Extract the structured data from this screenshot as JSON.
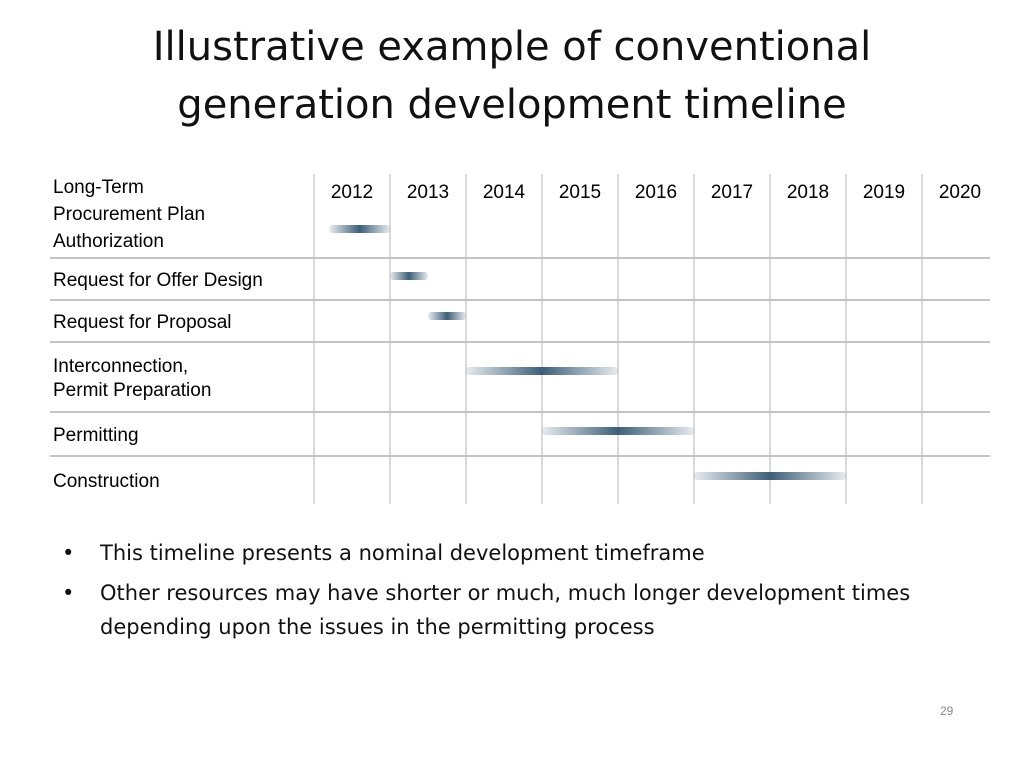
{
  "slide": {
    "title_line1": "Illustrative example of conventional",
    "title_line2": "generation development timeline",
    "page_number": "29"
  },
  "chart_data": {
    "type": "gantt",
    "years": [
      "2012",
      "2013",
      "2014",
      "2015",
      "2016",
      "2017",
      "2018",
      "2019",
      "2020"
    ],
    "tasks": [
      {
        "label_lines": [
          "Long-Term",
          "Procurement Plan",
          "Authorization"
        ],
        "start": 2012.2,
        "end": 2013.0
      },
      {
        "label_lines": [
          "Request for Offer Design"
        ],
        "start": 2013.0,
        "end": 2013.5
      },
      {
        "label_lines": [
          "Request for Proposal"
        ],
        "start": 2013.5,
        "end": 2014.0
      },
      {
        "label_lines": [
          "Interconnection,",
          "Permit Preparation"
        ],
        "start": 2014.0,
        "end": 2016.0
      },
      {
        "label_lines": [
          "Permitting"
        ],
        "start": 2015.0,
        "end": 2017.0
      },
      {
        "label_lines": [
          "Construction"
        ],
        "start": 2017.0,
        "end": 2019.0
      }
    ],
    "bar_color": "#3e5f78",
    "grid": true
  },
  "bullets": [
    "This timeline presents a nominal development timeframe",
    "Other resources may have shorter or much, much longer development times depending upon the issues in the permitting process"
  ]
}
